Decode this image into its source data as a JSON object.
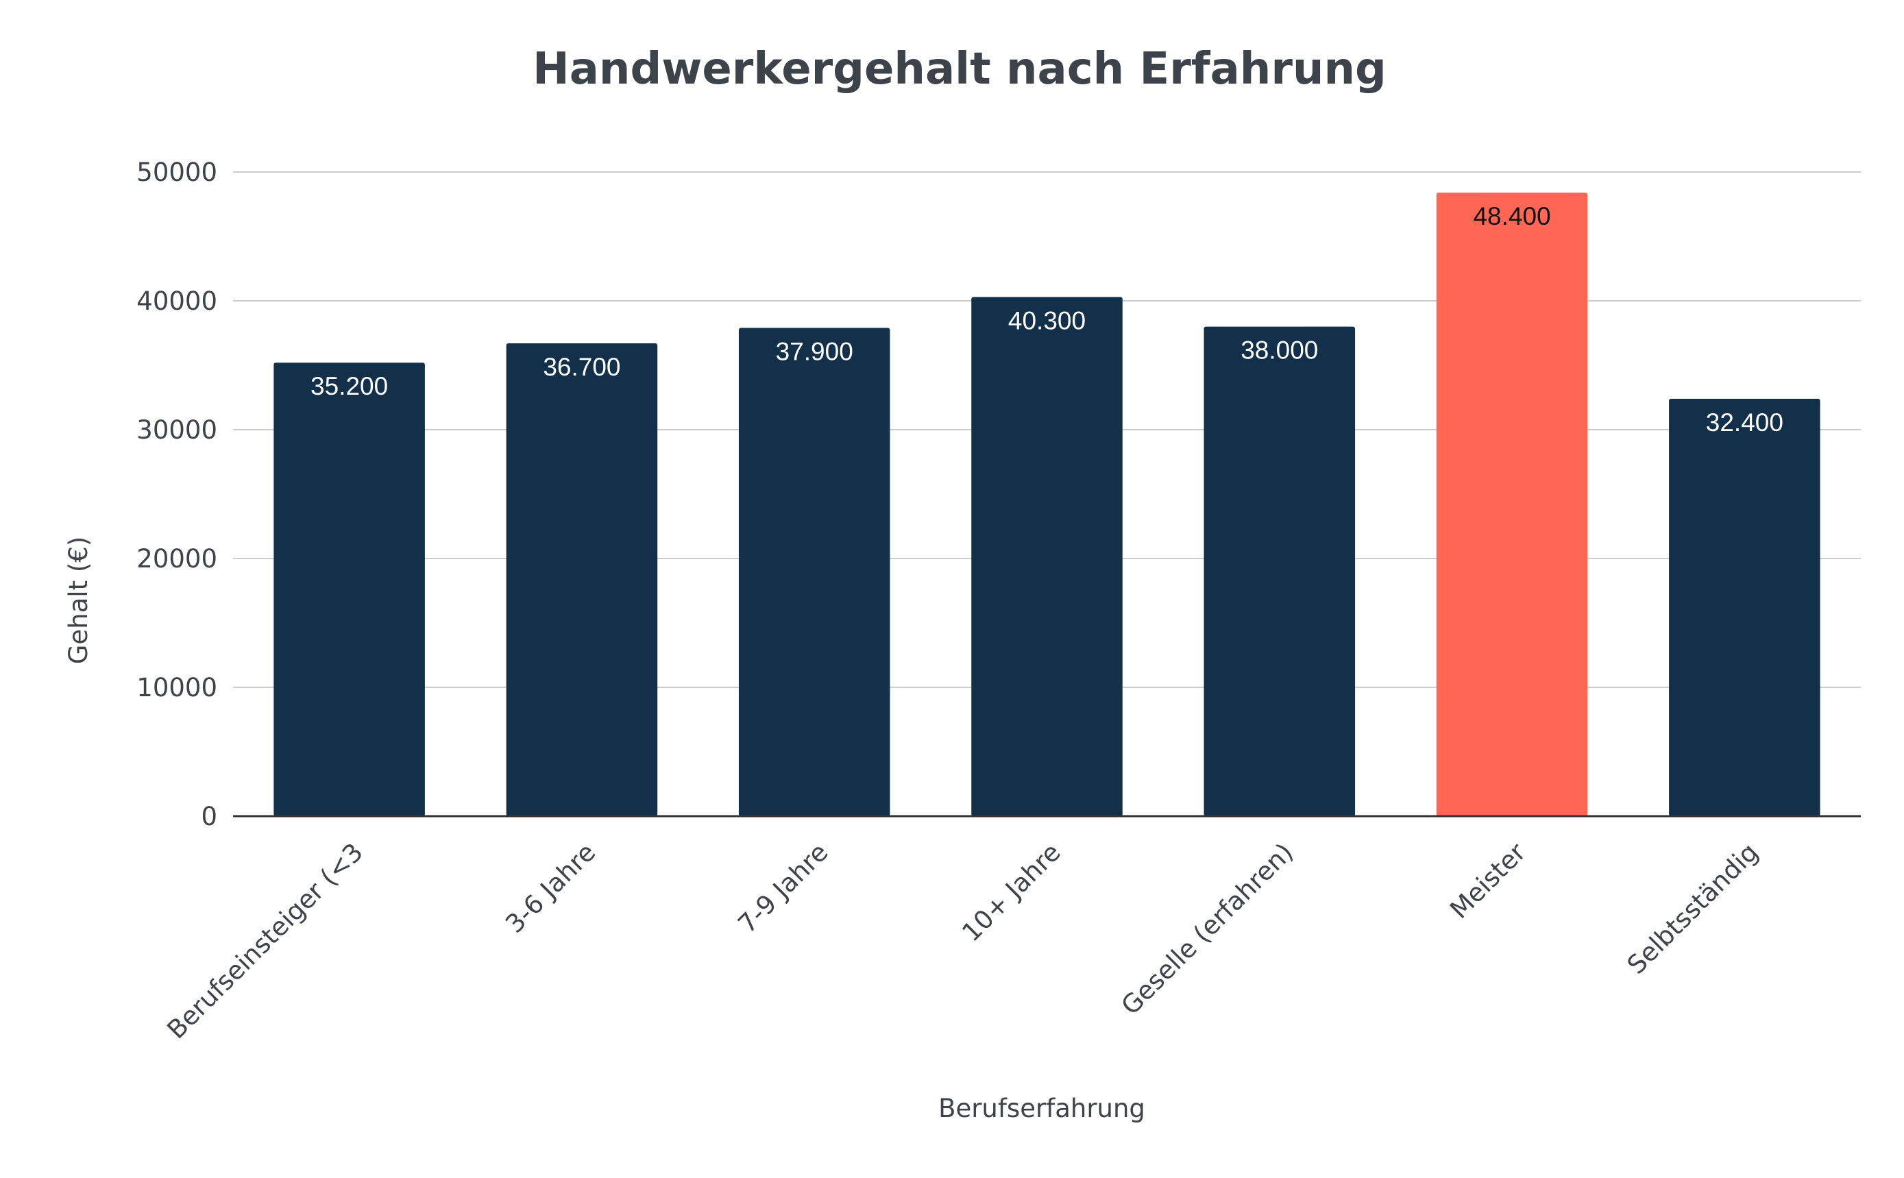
{
  "chart_data": {
    "type": "bar",
    "title": "Handwerkergehalt nach Erfahrung",
    "xlabel": "Berufserfahrung",
    "ylabel": "Gehalt (€)",
    "categories": [
      "Berufseinsteiger (<3",
      "3-6 Jahre",
      "7-9 Jahre",
      "10+ Jahre",
      "Geselle (erfahren)",
      "Meister",
      "Selbtsständig"
    ],
    "values": [
      35200,
      36700,
      37900,
      40300,
      38000,
      48400,
      32400
    ],
    "data_labels": [
      "35.200",
      "36.700",
      "37.900",
      "40.300",
      "38.000",
      "48.400",
      "32.400"
    ],
    "highlight_index": 5,
    "ylim": [
      0,
      50000
    ],
    "yticks": [
      0,
      10000,
      20000,
      30000,
      40000,
      50000
    ],
    "ytick_labels": [
      "0",
      "10000",
      "20000",
      "30000",
      "40000",
      "50000"
    ],
    "grid": true,
    "legend": "none",
    "colors": {
      "bar": "#13304b",
      "highlight": "#ff6754",
      "label_on_bar": "#ffffff",
      "label_on_highlight": "#111111",
      "grid": "#cccccc",
      "axis": "#333333",
      "text": "#3d434b"
    }
  }
}
